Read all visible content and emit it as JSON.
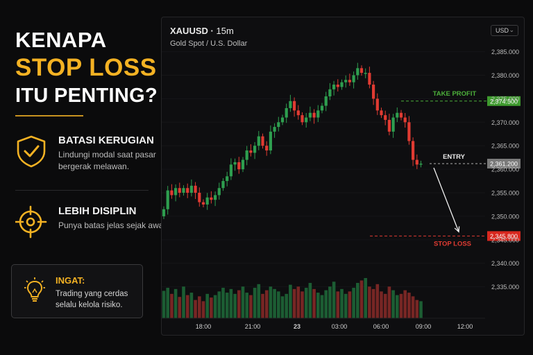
{
  "headline": {
    "line1": "KENAPA",
    "line2": "STOP LOSS",
    "line3": "ITU PENTING?"
  },
  "benefits": [
    {
      "title": "BATASI KERUGIAN",
      "desc": "Lindungi modal saat pasar bergerak melawan.",
      "icon": "shield-check-icon"
    },
    {
      "title": "LEBIH DISIPLIN",
      "desc": "Punya batas jelas sejak awal.",
      "icon": "target-crosshair-icon"
    }
  ],
  "remember": {
    "title": "INGAT:",
    "text": "Trading yang cerdas selalu kelola risiko.",
    "icon": "lightbulb-icon"
  },
  "chart_header": {
    "symbol": "XAUUSD",
    "separator": "·",
    "timeframe": "15m",
    "subtitle": "Gold Spot / U.S. Dollar",
    "currency": "USD",
    "currency_chevron": "⌄"
  },
  "colors": {
    "accent_gold": "#f4b223",
    "up": "#2e9e4f",
    "down": "#e03b32",
    "take_profit": "#4caf3a",
    "entry": "#8a8a8a"
  },
  "chart_data": {
    "type": "candlestick",
    "y_ticks": [
      "2,385.000",
      "2,380.000",
      "2,375.000",
      "2,370.000",
      "2,365.000",
      "2,360.000",
      "2,355.000",
      "2,350.000",
      "2,345.000",
      "2,340.000",
      "2,335.000"
    ],
    "x_ticks": [
      "18:00",
      "21:00",
      "23",
      "03:00",
      "06:00",
      "09:00",
      "12:00"
    ],
    "ylim": [
      2332,
      2387
    ],
    "levels": {
      "take_profit": {
        "label": "TAKE PROFIT",
        "value": 2374.5,
        "value_label": "2,374.500"
      },
      "entry": {
        "label": "ENTRY",
        "value": 2361.2,
        "value_label": "2,361.200"
      },
      "stop_loss": {
        "label": "STOP LOSS",
        "value": 2345.8,
        "value_label": "2,345.800"
      }
    },
    "closes": [
      2351.5,
      2355.5,
      2354.5,
      2356,
      2355,
      2356,
      2355,
      2356.5,
      2355,
      2353,
      2352.5,
      2354,
      2353.5,
      2354.5,
      2356,
      2357.5,
      2358.5,
      2361,
      2361.5,
      2360,
      2362,
      2364,
      2363.5,
      2365,
      2367,
      2365,
      2364,
      2368,
      2369,
      2370,
      2371,
      2373,
      2374.5,
      2372.5,
      2371.5,
      2370,
      2371,
      2372,
      2371,
      2372.5,
      2373.5,
      2375.5,
      2377,
      2378,
      2377.5,
      2378.5,
      2379,
      2378.5,
      2380,
      2381.5,
      2380.5,
      2380.5,
      2378,
      2375,
      2372.5,
      2371.5,
      2370.5,
      2368,
      2371,
      2372,
      2371,
      2370,
      2366,
      2362,
      2361,
      2361.2
    ],
    "volumes": [
      45,
      50,
      40,
      48,
      35,
      52,
      38,
      42,
      30,
      36,
      28,
      40,
      34,
      38,
      44,
      50,
      42,
      48,
      40,
      46,
      52,
      42,
      38,
      50,
      56,
      40,
      46,
      52,
      48,
      44,
      36,
      40,
      55,
      48,
      52,
      44,
      50,
      58,
      48,
      42,
      38,
      46,
      52,
      60,
      44,
      48,
      40,
      44,
      50,
      58,
      62,
      66,
      52,
      48,
      56,
      44,
      40,
      52,
      46,
      38,
      40,
      46,
      42,
      36,
      30,
      28
    ]
  }
}
